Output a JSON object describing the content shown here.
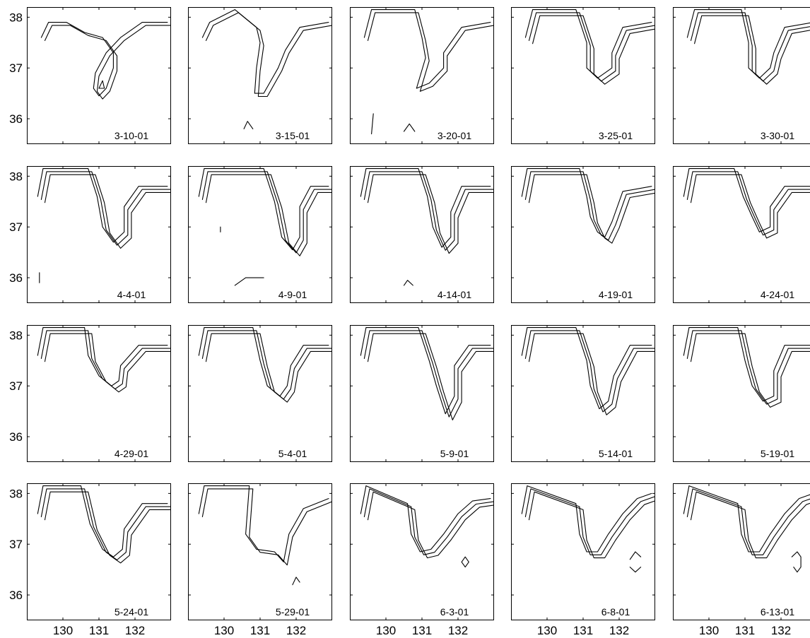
{
  "chart_data": {
    "type": "contour-grid",
    "title": "",
    "xlabel": "",
    "ylabel": "",
    "xlim": [
      129.0,
      133.0
    ],
    "ylim": [
      35.5,
      38.2
    ],
    "x_ticks": [
      130,
      131,
      132
    ],
    "y_ticks": [
      36,
      37,
      38
    ],
    "x_tick_labels": [
      "130",
      "131",
      "132"
    ],
    "y_tick_labels": [
      "36",
      "37",
      "38"
    ],
    "grid": false,
    "legend": "none",
    "line_color": "#000000",
    "panels": [
      {
        "date": "3-10-01",
        "path": [
          [
            129.4,
            37.6
          ],
          [
            129.6,
            37.9
          ],
          [
            130.1,
            37.9
          ],
          [
            130.6,
            37.7
          ],
          [
            131.1,
            37.6
          ],
          [
            131.4,
            37.3
          ],
          [
            131.4,
            37.0
          ],
          [
            131.2,
            36.6
          ],
          [
            131.0,
            36.45
          ],
          [
            130.85,
            36.6
          ],
          [
            130.9,
            36.9
          ],
          [
            131.2,
            37.3
          ],
          [
            131.6,
            37.6
          ],
          [
            132.2,
            37.9
          ],
          [
            132.9,
            37.9
          ]
        ],
        "offsets": [
          0.0,
          0.1
        ],
        "extras": [
          [
            [
              131.0,
              36.6
            ],
            [
              131.1,
              36.75
            ],
            [
              131.15,
              36.6
            ],
            [
              131.0,
              36.6
            ]
          ]
        ]
      },
      {
        "date": "3-15-01",
        "path": [
          [
            129.4,
            37.6
          ],
          [
            129.6,
            37.9
          ],
          [
            130.3,
            38.15
          ],
          [
            130.9,
            37.8
          ],
          [
            131.0,
            37.5
          ],
          [
            130.9,
            37.0
          ],
          [
            130.85,
            36.5
          ],
          [
            131.1,
            36.5
          ],
          [
            131.5,
            37.0
          ],
          [
            131.7,
            37.35
          ],
          [
            132.1,
            37.8
          ],
          [
            132.9,
            37.9
          ]
        ],
        "offsets": [
          0.0,
          0.1
        ],
        "extras": [
          [
            [
              130.55,
              35.8
            ],
            [
              130.65,
              35.95
            ],
            [
              130.8,
              35.8
            ]
          ]
        ]
      },
      {
        "date": "3-20-01",
        "path": [
          [
            129.4,
            37.6
          ],
          [
            129.6,
            38.15
          ],
          [
            130.8,
            38.15
          ],
          [
            131.0,
            37.6
          ],
          [
            131.1,
            37.2
          ],
          [
            130.85,
            36.6
          ],
          [
            131.2,
            36.7
          ],
          [
            131.6,
            37.0
          ],
          [
            131.6,
            37.3
          ],
          [
            132.1,
            37.8
          ],
          [
            132.9,
            37.9
          ]
        ],
        "offsets": [
          0.0,
          0.1
        ],
        "extras": [
          [
            [
              129.6,
              35.7
            ],
            [
              129.65,
              36.1
            ]
          ],
          [
            [
              130.5,
              35.75
            ],
            [
              130.65,
              35.9
            ],
            [
              130.8,
              35.75
            ]
          ]
        ]
      },
      {
        "date": "3-25-01",
        "path": [
          [
            129.4,
            37.6
          ],
          [
            129.6,
            38.15
          ],
          [
            130.8,
            38.15
          ],
          [
            131.1,
            37.5
          ],
          [
            131.1,
            37.0
          ],
          [
            131.4,
            36.8
          ],
          [
            131.8,
            37.0
          ],
          [
            131.8,
            37.3
          ],
          [
            132.1,
            37.8
          ],
          [
            132.9,
            37.9
          ]
        ],
        "offsets": [
          0.0,
          0.1,
          0.2
        ],
        "extras": []
      },
      {
        "date": "3-30-01",
        "path": [
          [
            129.4,
            37.6
          ],
          [
            129.6,
            38.15
          ],
          [
            130.9,
            38.15
          ],
          [
            131.1,
            37.5
          ],
          [
            131.1,
            37.0
          ],
          [
            131.4,
            36.8
          ],
          [
            131.7,
            37.0
          ],
          [
            131.8,
            37.3
          ],
          [
            132.1,
            37.8
          ],
          [
            132.9,
            37.9
          ]
        ],
        "offsets": [
          0.0,
          0.1,
          0.2
        ],
        "extras": []
      },
      {
        "date": "4-4-01",
        "path": [
          [
            129.3,
            37.6
          ],
          [
            129.45,
            38.15
          ],
          [
            130.7,
            38.15
          ],
          [
            130.95,
            37.6
          ],
          [
            131.1,
            37.0
          ],
          [
            131.4,
            36.7
          ],
          [
            131.7,
            36.9
          ],
          [
            131.7,
            37.4
          ],
          [
            132.1,
            37.8
          ],
          [
            132.9,
            37.8
          ]
        ],
        "offsets": [
          0.0,
          0.1,
          0.2
        ],
        "extras": [
          [
            [
              129.35,
              35.9
            ],
            [
              129.35,
              36.1
            ]
          ]
        ]
      },
      {
        "date": "4-9-01",
        "path": [
          [
            129.3,
            37.6
          ],
          [
            129.45,
            38.15
          ],
          [
            131.1,
            38.15
          ],
          [
            131.4,
            37.5
          ],
          [
            131.6,
            36.8
          ],
          [
            131.9,
            36.55
          ],
          [
            132.1,
            36.8
          ],
          [
            132.1,
            37.4
          ],
          [
            132.4,
            37.8
          ],
          [
            132.9,
            37.8
          ]
        ],
        "offsets": [
          0.0,
          0.1,
          0.2
        ],
        "extras": [
          [
            [
              129.9,
              37.0
            ],
            [
              129.9,
              36.9
            ]
          ],
          [
            [
              130.3,
              35.85
            ],
            [
              130.6,
              36.0
            ],
            [
              131.1,
              36.0
            ]
          ]
        ]
      },
      {
        "date": "4-14-01",
        "path": [
          [
            129.3,
            37.6
          ],
          [
            129.45,
            38.15
          ],
          [
            130.9,
            38.15
          ],
          [
            131.15,
            37.6
          ],
          [
            131.3,
            37.0
          ],
          [
            131.55,
            36.6
          ],
          [
            131.8,
            36.8
          ],
          [
            131.8,
            37.3
          ],
          [
            132.1,
            37.8
          ],
          [
            132.9,
            37.8
          ]
        ],
        "offsets": [
          0.0,
          0.1,
          0.2
        ],
        "extras": [
          [
            [
              130.5,
              35.85
            ],
            [
              130.6,
              35.95
            ],
            [
              130.75,
              35.85
            ]
          ]
        ]
      },
      {
        "date": "4-19-01",
        "path": [
          [
            129.3,
            37.6
          ],
          [
            129.45,
            38.15
          ],
          [
            130.9,
            38.15
          ],
          [
            131.1,
            37.6
          ],
          [
            131.2,
            37.2
          ],
          [
            131.4,
            36.9
          ],
          [
            131.6,
            36.8
          ],
          [
            131.8,
            37.1
          ],
          [
            132.1,
            37.7
          ],
          [
            132.9,
            37.8
          ]
        ],
        "offsets": [
          0.0,
          0.1,
          0.2
        ],
        "extras": []
      },
      {
        "date": "4-24-01",
        "path": [
          [
            129.3,
            37.6
          ],
          [
            129.45,
            38.15
          ],
          [
            130.7,
            38.15
          ],
          [
            130.95,
            37.6
          ],
          [
            131.2,
            37.2
          ],
          [
            131.4,
            36.9
          ],
          [
            131.7,
            37.0
          ],
          [
            131.7,
            37.4
          ],
          [
            132.1,
            37.8
          ],
          [
            132.9,
            37.8
          ]
        ],
        "offsets": [
          0.0,
          0.1,
          0.2
        ],
        "extras": []
      },
      {
        "date": "4-29-01",
        "path": [
          [
            129.3,
            37.6
          ],
          [
            129.45,
            38.15
          ],
          [
            130.6,
            38.15
          ],
          [
            130.7,
            37.6
          ],
          [
            131.0,
            37.2
          ],
          [
            131.35,
            37.0
          ],
          [
            131.55,
            37.1
          ],
          [
            131.6,
            37.4
          ],
          [
            132.1,
            37.8
          ],
          [
            132.9,
            37.8
          ]
        ],
        "offsets": [
          0.0,
          0.1,
          0.2
        ],
        "extras": []
      },
      {
        "date": "5-4-01",
        "path": [
          [
            129.3,
            37.6
          ],
          [
            129.45,
            38.15
          ],
          [
            130.8,
            38.15
          ],
          [
            131.0,
            37.5
          ],
          [
            131.2,
            37.0
          ],
          [
            131.55,
            36.8
          ],
          [
            131.75,
            37.0
          ],
          [
            131.85,
            37.4
          ],
          [
            132.2,
            37.8
          ],
          [
            132.9,
            37.8
          ]
        ],
        "offsets": [
          0.0,
          0.1,
          0.2
        ],
        "extras": []
      },
      {
        "date": "5-9-01",
        "path": [
          [
            129.3,
            37.6
          ],
          [
            129.45,
            38.15
          ],
          [
            130.9,
            38.15
          ],
          [
            131.2,
            37.5
          ],
          [
            131.4,
            37.0
          ],
          [
            131.65,
            36.45
          ],
          [
            131.9,
            36.8
          ],
          [
            131.9,
            37.4
          ],
          [
            132.3,
            37.8
          ],
          [
            132.9,
            37.8
          ]
        ],
        "offsets": [
          0.0,
          0.1,
          0.2
        ],
        "extras": []
      },
      {
        "date": "5-14-01",
        "path": [
          [
            129.3,
            37.6
          ],
          [
            129.45,
            38.15
          ],
          [
            130.8,
            38.15
          ],
          [
            131.1,
            37.5
          ],
          [
            131.2,
            37.0
          ],
          [
            131.45,
            36.55
          ],
          [
            131.7,
            36.7
          ],
          [
            131.85,
            37.2
          ],
          [
            132.3,
            37.8
          ],
          [
            132.9,
            37.8
          ]
        ],
        "offsets": [
          0.0,
          0.1,
          0.2
        ],
        "extras": []
      },
      {
        "date": "5-19-01",
        "path": [
          [
            129.3,
            37.6
          ],
          [
            129.45,
            38.15
          ],
          [
            130.8,
            38.15
          ],
          [
            131.0,
            37.5
          ],
          [
            131.2,
            37.0
          ],
          [
            131.5,
            36.7
          ],
          [
            131.8,
            36.8
          ],
          [
            131.8,
            37.3
          ],
          [
            132.1,
            37.8
          ],
          [
            132.9,
            37.8
          ]
        ],
        "offsets": [
          0.0,
          0.1,
          0.2
        ],
        "extras": []
      },
      {
        "date": "5-24-01",
        "path": [
          [
            129.3,
            37.6
          ],
          [
            129.45,
            38.15
          ],
          [
            130.5,
            38.15
          ],
          [
            130.75,
            37.4
          ],
          [
            131.1,
            36.9
          ],
          [
            131.4,
            36.75
          ],
          [
            131.65,
            36.9
          ],
          [
            131.7,
            37.3
          ],
          [
            132.2,
            37.8
          ],
          [
            132.9,
            37.8
          ]
        ],
        "offsets": [
          0.0,
          0.1,
          0.2
        ],
        "extras": []
      },
      {
        "date": "5-29-01",
        "path": [
          [
            129.3,
            37.6
          ],
          [
            129.45,
            38.15
          ],
          [
            130.7,
            38.15
          ],
          [
            130.6,
            37.2
          ],
          [
            130.9,
            36.9
          ],
          [
            131.4,
            36.85
          ],
          [
            131.65,
            36.65
          ],
          [
            131.8,
            37.2
          ],
          [
            132.2,
            37.7
          ],
          [
            132.9,
            37.9
          ]
        ],
        "offsets": [
          0.0,
          0.1
        ],
        "extras": [
          [
            [
              131.9,
              36.2
            ],
            [
              132.0,
              36.35
            ],
            [
              132.1,
              36.25
            ]
          ]
        ]
      },
      {
        "date": "6-3-01",
        "path": [
          [
            129.3,
            37.6
          ],
          [
            129.45,
            38.15
          ],
          [
            130.6,
            37.8
          ],
          [
            130.7,
            37.2
          ],
          [
            130.95,
            36.85
          ],
          [
            131.25,
            36.9
          ],
          [
            131.6,
            37.2
          ],
          [
            132.0,
            37.6
          ],
          [
            132.4,
            37.85
          ],
          [
            132.9,
            37.9
          ]
        ],
        "offsets": [
          0.0,
          0.1,
          0.2
        ],
        "extras": [
          [
            [
              132.1,
              36.65
            ],
            [
              132.2,
              36.75
            ],
            [
              132.3,
              36.65
            ],
            [
              132.2,
              36.55
            ],
            [
              132.1,
              36.65
            ]
          ]
        ]
      },
      {
        "date": "6-8-01",
        "path": [
          [
            129.3,
            37.6
          ],
          [
            129.45,
            38.15
          ],
          [
            130.8,
            37.8
          ],
          [
            130.9,
            37.2
          ],
          [
            131.1,
            36.85
          ],
          [
            131.4,
            36.85
          ],
          [
            131.7,
            37.2
          ],
          [
            132.1,
            37.6
          ],
          [
            132.5,
            37.9
          ],
          [
            132.9,
            38.0
          ]
        ],
        "offsets": [
          0.0,
          0.1,
          0.2
        ],
        "extras": [
          [
            [
              132.3,
              36.7
            ],
            [
              132.45,
              36.85
            ],
            [
              132.6,
              36.75
            ]
          ],
          [
            [
              132.3,
              36.55
            ],
            [
              132.45,
              36.45
            ],
            [
              132.6,
              36.55
            ]
          ]
        ]
      },
      {
        "date": "6-13-01",
        "path": [
          [
            129.3,
            37.6
          ],
          [
            129.45,
            38.15
          ],
          [
            130.8,
            37.8
          ],
          [
            130.9,
            37.2
          ],
          [
            131.1,
            36.85
          ],
          [
            131.4,
            36.85
          ],
          [
            131.7,
            37.2
          ],
          [
            132.1,
            37.6
          ],
          [
            132.5,
            37.9
          ],
          [
            132.9,
            38.0
          ]
        ],
        "offsets": [
          0.0,
          0.1,
          0.2
        ],
        "extras": [
          [
            [
              132.3,
              36.75
            ],
            [
              132.45,
              36.85
            ],
            [
              132.55,
              36.75
            ],
            [
              132.55,
              36.55
            ],
            [
              132.45,
              36.45
            ],
            [
              132.35,
              36.55
            ]
          ]
        ]
      }
    ]
  }
}
